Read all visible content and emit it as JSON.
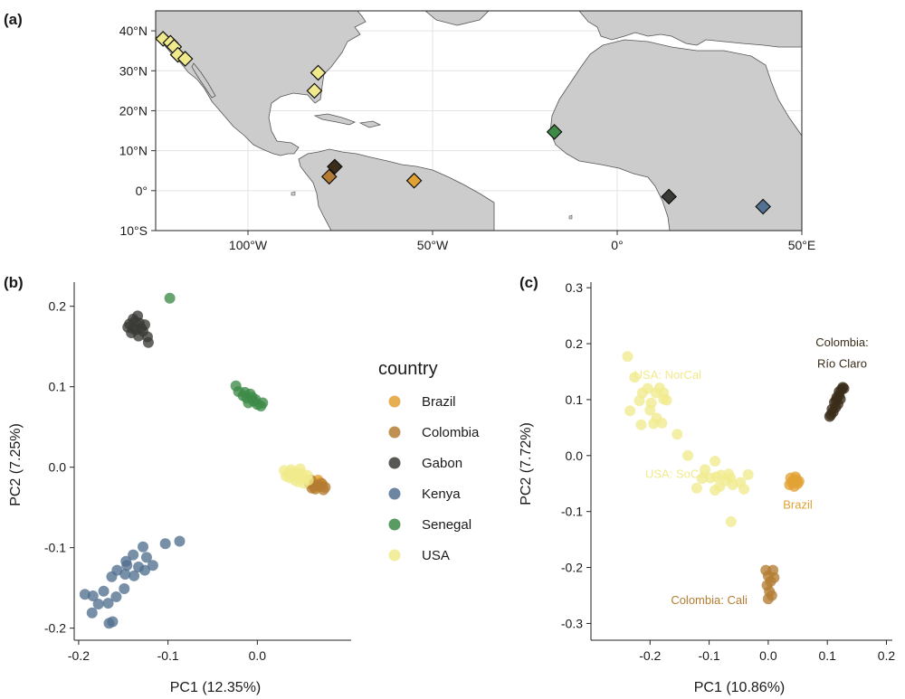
{
  "panel_labels": {
    "a": "(a)",
    "b": "(b)",
    "c": "(c)"
  },
  "colors": {
    "Brazil": "#e2a134",
    "Colombia": "#b47c32",
    "Gabon": "#3a3a36",
    "Kenya": "#52708f",
    "Senegal": "#3c8a46",
    "USA": "#f1ea8d",
    "Colombia_Rio_Claro": "#3a2d1a",
    "land": "#cccccc",
    "ocean": "#ffffff"
  },
  "chart_data": [
    {
      "type": "scatter",
      "panel": "(a)",
      "subtype": "map",
      "xlim": [
        -125,
        50
      ],
      "ylim": [
        -10,
        45
      ],
      "x_ticks": [
        -100,
        -50,
        0,
        50
      ],
      "x_tick_labels": [
        "100°W",
        "50°W",
        "0°",
        "50°E"
      ],
      "y_ticks": [
        -10,
        0,
        10,
        20,
        30,
        40
      ],
      "y_tick_labels": [
        "10°S",
        "0°",
        "10°N",
        "20°N",
        "30°N",
        "40°N"
      ],
      "grid": true,
      "sites": [
        {
          "country": "USA",
          "lon": -123,
          "lat": 38
        },
        {
          "country": "USA",
          "lon": -121,
          "lat": 37
        },
        {
          "country": "USA",
          "lon": -120,
          "lat": 36
        },
        {
          "country": "USA",
          "lon": -119,
          "lat": 34
        },
        {
          "country": "USA",
          "lon": -117,
          "lat": 33
        },
        {
          "country": "USA",
          "lon": -81,
          "lat": 29.5
        },
        {
          "country": "USA",
          "lon": -82,
          "lat": 25
        },
        {
          "country": "Colombia",
          "lon": -78,
          "lat": 3.5
        },
        {
          "country": "Colombia_Rio_Claro",
          "lon": -76.5,
          "lat": 6
        },
        {
          "country": "Brazil",
          "lon": -55,
          "lat": 2.5
        },
        {
          "country": "Senegal",
          "lon": -17,
          "lat": 14.7
        },
        {
          "country": "Gabon",
          "lon": 14,
          "lat": -1.5
        },
        {
          "country": "Kenya",
          "lon": 39.5,
          "lat": -4
        }
      ]
    },
    {
      "type": "scatter",
      "panel": "(b)",
      "xlabel": "PC1 (12.35%)",
      "ylabel": "PC2 (7.25%)",
      "xlim": [
        -0.205,
        0.105
      ],
      "ylim": [
        -0.215,
        0.23
      ],
      "x_ticks": [
        -0.2,
        -0.1,
        0.0
      ],
      "x_tick_labels": [
        "-0.2",
        "-0.1",
        "0.0"
      ],
      "y_ticks": [
        -0.2,
        -0.1,
        0.0,
        0.1,
        0.2
      ],
      "y_tick_labels": [
        "-0.2",
        "-0.1",
        "0.0",
        "0.1",
        "0.2"
      ],
      "legend": {
        "title": "country",
        "placement": "right",
        "entries": [
          "Brazil",
          "Colombia",
          "Gabon",
          "Kenya",
          "Senegal",
          "USA"
        ]
      },
      "series": [
        {
          "name": "Brazil",
          "points": [
            [
              0.062,
              -0.018
            ],
            [
              0.066,
              -0.021
            ],
            [
              0.069,
              -0.019
            ],
            [
              0.071,
              -0.024
            ],
            [
              0.064,
              -0.025
            ],
            [
              0.068,
              -0.016
            ],
            [
              0.073,
              -0.022
            ]
          ]
        },
        {
          "name": "Colombia",
          "points": [
            [
              0.058,
              -0.02
            ],
            [
              0.061,
              -0.026
            ],
            [
              0.065,
              -0.027
            ],
            [
              0.07,
              -0.024
            ],
            [
              0.074,
              -0.028
            ],
            [
              0.072,
              -0.02
            ],
            [
              0.067,
              -0.022
            ],
            [
              0.076,
              -0.025
            ],
            [
              0.063,
              -0.023
            ],
            [
              0.06,
              -0.016
            ]
          ]
        },
        {
          "name": "Gabon",
          "points": [
            [
              -0.143,
              0.178
            ],
            [
              -0.139,
              0.184
            ],
            [
              -0.136,
              0.171
            ],
            [
              -0.132,
              0.179
            ],
            [
              -0.128,
              0.169
            ],
            [
              -0.141,
              0.167
            ],
            [
              -0.134,
              0.188
            ],
            [
              -0.126,
              0.177
            ],
            [
              -0.133,
              0.163
            ],
            [
              -0.137,
              0.181
            ],
            [
              -0.13,
              0.173
            ],
            [
              -0.139,
              0.172
            ],
            [
              -0.123,
              0.162
            ],
            [
              -0.122,
              0.155
            ],
            [
              -0.145,
              0.174
            ]
          ]
        },
        {
          "name": "Kenya",
          "points": [
            [
              -0.193,
              -0.158
            ],
            [
              -0.184,
              -0.16
            ],
            [
              -0.172,
              -0.154
            ],
            [
              -0.163,
              -0.136
            ],
            [
              -0.157,
              -0.128
            ],
            [
              -0.147,
              -0.117
            ],
            [
              -0.139,
              -0.109
            ],
            [
              -0.128,
              -0.099
            ],
            [
              -0.124,
              -0.112
            ],
            [
              -0.117,
              -0.122
            ],
            [
              -0.126,
              -0.128
            ],
            [
              -0.133,
              -0.124
            ],
            [
              -0.138,
              -0.135
            ],
            [
              -0.149,
              -0.151
            ],
            [
              -0.158,
              -0.161
            ],
            [
              -0.167,
              -0.169
            ],
            [
              -0.178,
              -0.17
            ],
            [
              -0.185,
              -0.181
            ],
            [
              -0.162,
              -0.192
            ],
            [
              -0.166,
              -0.194
            ],
            [
              -0.148,
              -0.133
            ],
            [
              -0.146,
              -0.122
            ],
            [
              -0.103,
              -0.095
            ],
            [
              -0.087,
              -0.092
            ]
          ]
        },
        {
          "name": "Senegal",
          "points": [
            [
              -0.098,
              0.21
            ],
            [
              -0.024,
              0.101
            ],
            [
              -0.021,
              0.094
            ],
            [
              -0.016,
              0.089
            ],
            [
              -0.012,
              0.086
            ],
            [
              -0.008,
              0.091
            ],
            [
              -0.004,
              0.082
            ],
            [
              0.0,
              0.078
            ],
            [
              0.004,
              0.076
            ],
            [
              -0.01,
              0.08
            ],
            [
              -0.006,
              0.087
            ],
            [
              -0.014,
              0.093
            ],
            [
              -0.002,
              0.084
            ],
            [
              0.006,
              0.08
            ]
          ]
        },
        {
          "name": "USA",
          "points": [
            [
              0.03,
              -0.004
            ],
            [
              0.034,
              -0.008
            ],
            [
              0.038,
              -0.003
            ],
            [
              0.041,
              -0.01
            ],
            [
              0.044,
              -0.006
            ],
            [
              0.047,
              -0.012
            ],
            [
              0.05,
              -0.008
            ],
            [
              0.053,
              -0.014
            ],
            [
              0.056,
              -0.01
            ],
            [
              0.036,
              -0.013
            ],
            [
              0.042,
              -0.016
            ],
            [
              0.048,
              -0.002
            ],
            [
              0.032,
              -0.011
            ],
            [
              0.045,
              -0.018
            ],
            [
              0.052,
              -0.02
            ],
            [
              0.039,
              -0.006
            ],
            [
              0.057,
              -0.016
            ],
            [
              0.043,
              -0.009
            ]
          ]
        }
      ]
    },
    {
      "type": "scatter",
      "panel": "(c)",
      "xlabel": "PC1 (10.86%)",
      "ylabel": "PC2 (7.72%)",
      "xlim": [
        -0.3,
        0.21
      ],
      "ylim": [
        -0.33,
        0.31
      ],
      "x_ticks": [
        -0.2,
        -0.1,
        0.0,
        0.1,
        0.2
      ],
      "x_tick_labels": [
        "-0.2",
        "-0.1",
        "0.0",
        "0.1",
        "0.2"
      ],
      "y_ticks": [
        -0.3,
        -0.2,
        -0.1,
        0.0,
        0.1,
        0.2,
        0.3
      ],
      "y_tick_labels": [
        "-0.3",
        "-0.2",
        "-0.1",
        "0.0",
        "0.1",
        "0.2",
        "0.3"
      ],
      "annotations": [
        {
          "text": "Colombia:",
          "x": 0.125,
          "y": 0.195,
          "color": "Colombia_Rio_Claro"
        },
        {
          "text": "Río Claro",
          "x": 0.125,
          "y": 0.157,
          "color": "Colombia_Rio_Claro"
        },
        {
          "text": "USA: NorCal",
          "x": -0.17,
          "y": 0.137,
          "color": "USA"
        },
        {
          "text": "USA: SoCal",
          "x": -0.155,
          "y": -0.04,
          "color": "USA"
        },
        {
          "text": "Brazil",
          "x": 0.05,
          "y": -0.095,
          "color": "Brazil"
        },
        {
          "text": "Colombia: Cali",
          "x": -0.1,
          "y": -0.265,
          "color": "Colombia"
        }
      ],
      "series": [
        {
          "name": "USA: NorCal",
          "points": [
            [
              -0.238,
              0.177
            ],
            [
              -0.226,
              0.14
            ],
            [
              -0.213,
              0.112
            ],
            [
              -0.204,
              0.12
            ],
            [
              -0.198,
              0.094
            ],
            [
              -0.19,
              0.112
            ],
            [
              -0.184,
              0.121
            ],
            [
              -0.177,
              0.101
            ],
            [
              -0.215,
              0.055
            ],
            [
              -0.2,
              0.081
            ],
            [
              -0.189,
              0.067
            ],
            [
              -0.18,
              0.058
            ],
            [
              -0.234,
              0.08
            ],
            [
              -0.218,
              0.098
            ],
            [
              -0.194,
              0.057
            ],
            [
              -0.177,
              0.112
            ],
            [
              -0.172,
              0.099
            ],
            [
              -0.154,
              0.038
            ]
          ]
        },
        {
          "name": "USA: SoCal",
          "points": [
            [
              -0.136,
              0.0
            ],
            [
              -0.107,
              -0.025
            ],
            [
              -0.098,
              -0.04
            ],
            [
              -0.09,
              -0.01
            ],
            [
              -0.088,
              -0.038
            ],
            [
              -0.082,
              -0.055
            ],
            [
              -0.072,
              -0.045
            ],
            [
              -0.067,
              -0.033
            ],
            [
              -0.064,
              -0.04
            ],
            [
              -0.09,
              -0.062
            ],
            [
              -0.08,
              -0.035
            ],
            [
              -0.06,
              -0.052
            ],
            [
              -0.047,
              -0.048
            ],
            [
              -0.041,
              -0.06
            ],
            [
              -0.034,
              -0.034
            ],
            [
              -0.063,
              -0.118
            ],
            [
              -0.121,
              -0.058
            ],
            [
              -0.112,
              -0.041
            ]
          ]
        },
        {
          "name": "Brazil",
          "points": [
            [
              0.038,
              -0.04
            ],
            [
              0.042,
              -0.045
            ],
            [
              0.046,
              -0.038
            ],
            [
              0.05,
              -0.05
            ],
            [
              0.044,
              -0.055
            ],
            [
              0.04,
              -0.048
            ],
            [
              0.048,
              -0.043
            ],
            [
              0.036,
              -0.052
            ],
            [
              0.052,
              -0.046
            ]
          ]
        },
        {
          "name": "Colombia: Cali",
          "points": [
            [
              -0.004,
              -0.205
            ],
            [
              0.0,
              -0.215
            ],
            [
              0.004,
              -0.225
            ],
            [
              0.008,
              -0.205
            ],
            [
              -0.002,
              -0.232
            ],
            [
              0.002,
              -0.243
            ],
            [
              0.006,
              -0.25
            ],
            [
              0.0,
              -0.256
            ],
            [
              0.01,
              -0.218
            ]
          ]
        },
        {
          "name": "Colombia: Río Claro",
          "points": [
            [
              0.104,
              0.07
            ],
            [
              0.108,
              0.083
            ],
            [
              0.112,
              0.095
            ],
            [
              0.116,
              0.104
            ],
            [
              0.12,
              0.114
            ],
            [
              0.124,
              0.118
            ],
            [
              0.118,
              0.092
            ],
            [
              0.11,
              0.078
            ],
            [
              0.114,
              0.086
            ],
            [
              0.122,
              0.101
            ],
            [
              0.126,
              0.122
            ],
            [
              0.106,
              0.073
            ],
            [
              0.115,
              0.099
            ],
            [
              0.12,
              0.108
            ],
            [
              0.128,
              0.12
            ]
          ]
        }
      ]
    }
  ]
}
